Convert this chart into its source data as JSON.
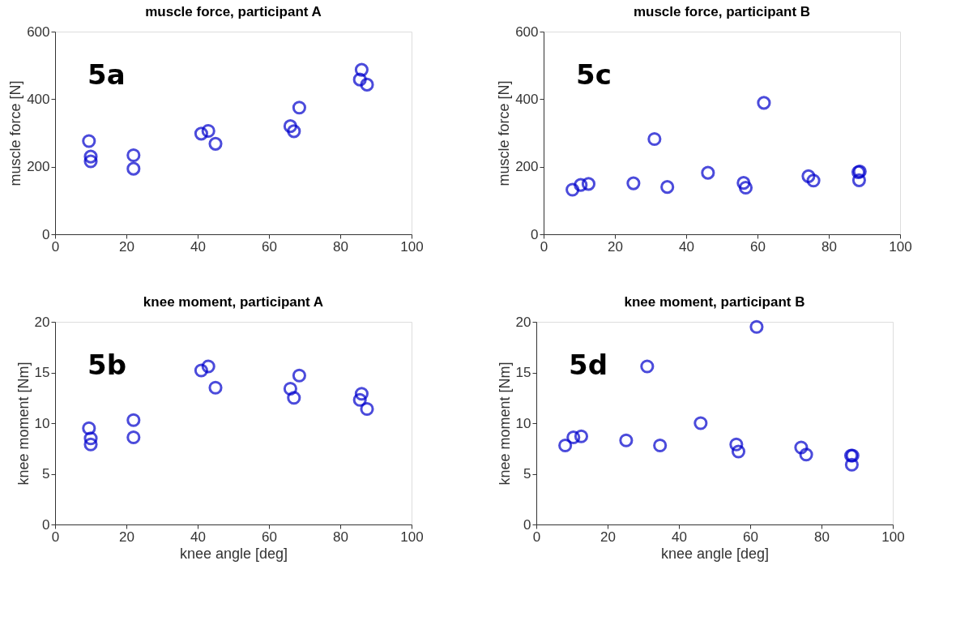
{
  "chart_data": [
    {
      "type": "scatter",
      "title": "muscle force, participant A",
      "ylabel": "muscle force [N]",
      "annotations": [
        "5a"
      ],
      "xlim": [
        0,
        100
      ],
      "xticks": [
        0,
        20,
        40,
        60,
        80,
        100
      ],
      "ylim": [
        0,
        600
      ],
      "yticks": [
        0,
        200,
        400,
        600
      ],
      "grid": false,
      "marker": "circle",
      "series": [
        {
          "color": "#0000cc",
          "x": [
            9.5,
            10,
            10,
            22,
            22,
            41,
            43,
            45,
            66,
            67,
            68.5,
            86,
            85.5,
            87.5
          ],
          "values": [
            276,
            230,
            216,
            234,
            194,
            298,
            306,
            268,
            320,
            305,
            375,
            487,
            458,
            443
          ]
        }
      ]
    },
    {
      "type": "scatter",
      "title": "muscle force, participant B",
      "ylabel": "muscle force [N]",
      "annotations": [
        "5c"
      ],
      "xlim": [
        0,
        100
      ],
      "xticks": [
        0,
        20,
        40,
        60,
        80,
        100
      ],
      "ylim": [
        0,
        600
      ],
      "yticks": [
        0,
        200,
        400,
        600
      ],
      "grid": false,
      "marker": "circle",
      "series": [
        {
          "color": "#0000cc",
          "x": [
            8.1,
            10.4,
            12.6,
            25.2,
            31.1,
            34.7,
            46.1,
            56.1,
            56.7,
            61.8,
            74.3,
            75.7,
            88.3,
            88.7,
            88.5
          ],
          "values": [
            132,
            146,
            149,
            151,
            282,
            140,
            182,
            152,
            138,
            389,
            172,
            159,
            184,
            186,
            160
          ]
        }
      ]
    },
    {
      "type": "scatter",
      "title": "knee moment, participant A",
      "xlabel": "knee angle [deg]",
      "ylabel": "knee moment [Nm]",
      "annotations": [
        "5b"
      ],
      "xlim": [
        0,
        100
      ],
      "xticks": [
        0,
        20,
        40,
        60,
        80,
        100
      ],
      "ylim": [
        0,
        20
      ],
      "yticks": [
        0,
        5,
        10,
        15,
        20
      ],
      "grid": false,
      "marker": "circle",
      "series": [
        {
          "color": "#0000cc",
          "x": [
            9.5,
            10,
            10,
            22,
            22,
            41,
            43,
            45,
            66,
            67,
            68.5,
            86,
            85.5,
            87.5
          ],
          "values": [
            9.5,
            8.5,
            7.9,
            10.3,
            8.6,
            15.2,
            15.6,
            13.5,
            13.4,
            12.5,
            14.7,
            12.9,
            12.3,
            11.4
          ]
        }
      ]
    },
    {
      "type": "scatter",
      "title": "knee moment, participant B",
      "xlabel": "knee angle [deg]",
      "ylabel": "knee moment [Nm]",
      "annotations": [
        "5d"
      ],
      "xlim": [
        0,
        100
      ],
      "xticks": [
        0,
        20,
        40,
        60,
        80,
        100
      ],
      "ylim": [
        0,
        20
      ],
      "yticks": [
        0,
        5,
        10,
        15,
        20
      ],
      "grid": false,
      "marker": "circle",
      "series": [
        {
          "color": "#0000cc",
          "x": [
            8.1,
            10.4,
            12.6,
            25.2,
            31.1,
            34.7,
            46.1,
            56.1,
            56.7,
            61.8,
            74.3,
            75.7,
            88.3,
            88.7,
            88.5
          ],
          "values": [
            7.8,
            8.6,
            8.7,
            8.3,
            15.6,
            7.8,
            10.0,
            7.9,
            7.2,
            19.5,
            7.6,
            6.9,
            6.8,
            6.8,
            5.9
          ]
        }
      ]
    }
  ]
}
